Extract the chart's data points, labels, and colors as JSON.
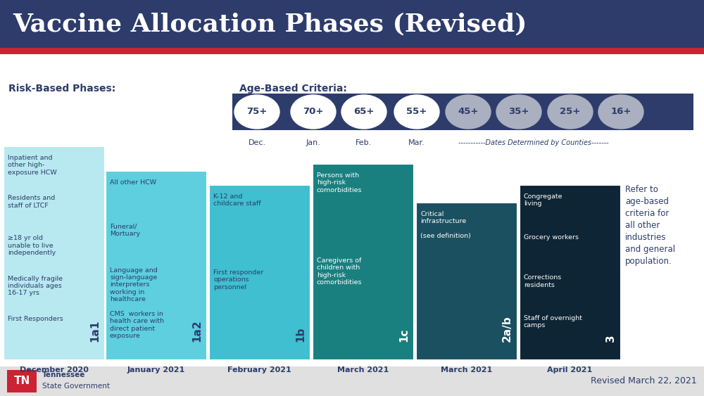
{
  "title": "Vaccine Allocation Phases (Revised)",
  "title_bg": "#2d3c6b",
  "title_color": "#ffffff",
  "red_stripe_color": "#cc2233",
  "bg_color": "#ffffff",
  "footer_text": "Revised March 22, 2021",
  "age_bar_bg": "#2d3c6b",
  "age_circles_white": [
    "75+",
    "70+",
    "65+",
    "55+"
  ],
  "age_circles_gray": [
    "45+",
    "35+",
    "25+",
    "16+"
  ],
  "age_dates_white": [
    "Dec.",
    "Jan.",
    "Feb.",
    "Mar."
  ],
  "age_county_text": "-----------Dates Determined by Counties-------",
  "phases": [
    {
      "id": "1a1",
      "color": "#b8e8f0",
      "text_color": "#2d3c6b",
      "label_color": "#2d3c6b",
      "date": "December 2020",
      "items": [
        "Inpatient and\nother high-\nexposure HCW",
        "Residents and\nstaff of LTCF",
        "≥18 yr old\nunable to live\nindependently",
        "Medically fragile\nindividuals ages\n16-17 yrs",
        "First Responders"
      ]
    },
    {
      "id": "1a2",
      "color": "#5dcfdf",
      "text_color": "#2d3c6b",
      "label_color": "#2d3c6b",
      "date": "January 2021",
      "items": [
        "All other HCW",
        "Funeral/\nMortuary",
        "Language and\nsign-language\ninterpreters\nworking in\nhealthcare",
        "CMS  workers in\nhealth care with\ndirect patient\nexposure"
      ]
    },
    {
      "id": "1b",
      "color": "#3fbfcf",
      "text_color": "#2d3c6b",
      "label_color": "#2d3c6b",
      "date": "February 2021",
      "items": [
        "K-12 and\nchildcare staff",
        "First responder\noperations\npersonnel"
      ]
    },
    {
      "id": "1c",
      "color": "#1a7f7f",
      "text_color": "#ffffff",
      "label_color": "#ffffff",
      "date": "March 2021",
      "items": [
        "Persons with\nhigh-risk\ncomorbidities",
        "Caregivers of\nchildren with\nhigh-risk\ncomorbidities"
      ]
    },
    {
      "id": "2a/b",
      "color": "#1a5060",
      "text_color": "#ffffff",
      "label_color": "#ffffff",
      "date": "March 2021",
      "items": [
        "Critical\ninfrastructure\n\n(see definition)"
      ]
    },
    {
      "id": "3",
      "color": "#0d2535",
      "text_color": "#ffffff",
      "label_color": "#ffffff",
      "date": "April 2021",
      "items": [
        "Congregate\nliving",
        "Grocery workers",
        "Corrections\nresidents",
        "Staff of overnight\ncamps"
      ]
    }
  ],
  "risk_label": "Risk-Based Phases:",
  "age_label": "Age-Based Criteria:",
  "refer_text": "Refer to\nage-based\ncriteria for\nall other\nindustries\nand general\npopulation."
}
